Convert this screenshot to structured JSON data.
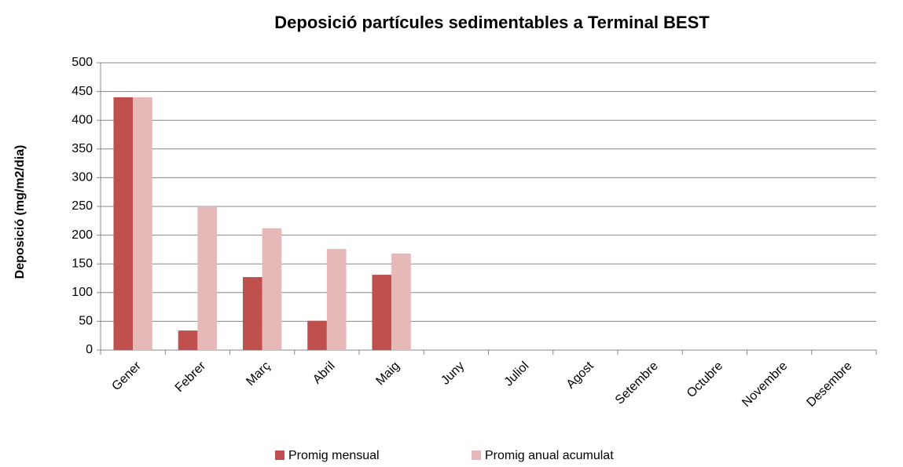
{
  "chart_data": {
    "type": "bar",
    "title": "Deposició partícules sedimentables a Terminal BEST",
    "y_label": "Deposició (mg/m2/dia)",
    "categories": [
      "Gener",
      "Febrer",
      "Març",
      "Abril",
      "Maig",
      "Juny",
      "Juliol",
      "Agost",
      "Setembre",
      "Octubre",
      "Novembre",
      "Desembre"
    ],
    "series": [
      {
        "name": "Promig mensual",
        "color": "#c0504d",
        "values": [
          440,
          34,
          127,
          51,
          131,
          null,
          null,
          null,
          null,
          null,
          null,
          null
        ]
      },
      {
        "name": "Promig anual acumulat",
        "color": "#e6b9b8",
        "values": [
          440,
          250,
          212,
          176,
          168,
          null,
          null,
          null,
          null,
          null,
          null,
          null
        ]
      }
    ],
    "ylim": [
      0,
      500
    ],
    "yticks": [
      0,
      50,
      100,
      150,
      200,
      250,
      300,
      350,
      400,
      450,
      500
    ],
    "grid": true,
    "legend": "bottom"
  }
}
